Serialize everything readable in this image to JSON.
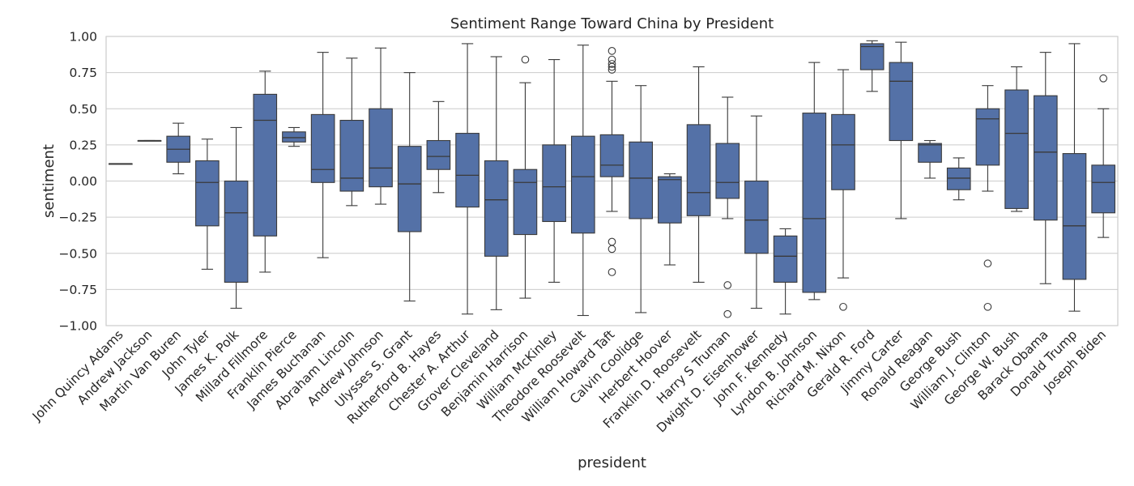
{
  "chart_data": {
    "type": "box",
    "title": "Sentiment Range Toward China by President",
    "xlabel": "president",
    "ylabel": "sentiment",
    "ylim": [
      -1.0,
      1.0
    ],
    "yticks": [
      1.0,
      0.75,
      0.5,
      0.25,
      0.0,
      -0.25,
      -0.5,
      -0.75,
      -1.0
    ],
    "ytick_labels": [
      "1.00",
      "0.75",
      "0.50",
      "0.25",
      "0.00",
      "−0.25",
      "−0.50",
      "−0.75",
      "−1.00"
    ],
    "grid": true,
    "box_color": "#5471a7",
    "categories": [
      "John Quincy Adams",
      "Andrew Jackson",
      "Martin Van Buren",
      "John Tyler",
      "James K. Polk",
      "Millard Fillmore",
      "Franklin Pierce",
      "James Buchanan",
      "Abraham Lincoln",
      "Andrew Johnson",
      "Ulysses S. Grant",
      "Rutherford B. Hayes",
      "Chester A. Arthur",
      "Grover Cleveland",
      "Benjamin Harrison",
      "William McKinley",
      "Theodore Roosevelt",
      "William Howard Taft",
      "Calvin Coolidge",
      "Herbert Hoover",
      "Franklin D. Roosevelt",
      "Harry S Truman",
      "Dwight D. Eisenhower",
      "John F. Kennedy",
      "Lyndon B. Johnson",
      "Richard M. Nixon",
      "Gerald R. Ford",
      "Jimmy Carter",
      "Ronald Reagan",
      "George Bush",
      "William J. Clinton",
      "George W. Bush",
      "Barack Obama",
      "Donald Trump",
      "Joseph Biden"
    ],
    "boxes": [
      {
        "whislo": 0.12,
        "q1": 0.12,
        "med": 0.12,
        "q3": 0.12,
        "whishi": 0.12,
        "fliers": []
      },
      {
        "whislo": 0.28,
        "q1": 0.28,
        "med": 0.28,
        "q3": 0.28,
        "whishi": 0.28,
        "fliers": []
      },
      {
        "whislo": 0.05,
        "q1": 0.13,
        "med": 0.22,
        "q3": 0.31,
        "whishi": 0.4,
        "fliers": []
      },
      {
        "whislo": -0.61,
        "q1": -0.31,
        "med": -0.01,
        "q3": 0.14,
        "whishi": 0.29,
        "fliers": []
      },
      {
        "whislo": -0.88,
        "q1": -0.7,
        "med": -0.22,
        "q3": 0.0,
        "whishi": 0.37,
        "fliers": []
      },
      {
        "whislo": -0.63,
        "q1": -0.38,
        "med": 0.42,
        "q3": 0.6,
        "whishi": 0.76,
        "fliers": []
      },
      {
        "whislo": 0.24,
        "q1": 0.27,
        "med": 0.3,
        "q3": 0.34,
        "whishi": 0.37,
        "fliers": []
      },
      {
        "whislo": -0.53,
        "q1": -0.01,
        "med": 0.08,
        "q3": 0.46,
        "whishi": 0.89,
        "fliers": []
      },
      {
        "whislo": -0.17,
        "q1": -0.07,
        "med": 0.02,
        "q3": 0.42,
        "whishi": 0.85,
        "fliers": []
      },
      {
        "whislo": -0.16,
        "q1": -0.04,
        "med": 0.09,
        "q3": 0.5,
        "whishi": 0.92,
        "fliers": []
      },
      {
        "whislo": -0.83,
        "q1": -0.35,
        "med": -0.02,
        "q3": 0.24,
        "whishi": 0.75,
        "fliers": []
      },
      {
        "whislo": -0.08,
        "q1": 0.08,
        "med": 0.17,
        "q3": 0.28,
        "whishi": 0.55,
        "fliers": []
      },
      {
        "whislo": -0.92,
        "q1": -0.18,
        "med": 0.04,
        "q3": 0.33,
        "whishi": 0.95,
        "fliers": []
      },
      {
        "whislo": -0.89,
        "q1": -0.52,
        "med": -0.13,
        "q3": 0.14,
        "whishi": 0.86,
        "fliers": []
      },
      {
        "whislo": -0.81,
        "q1": -0.37,
        "med": -0.01,
        "q3": 0.08,
        "whishi": 0.68,
        "fliers": [
          0.84
        ]
      },
      {
        "whislo": -0.7,
        "q1": -0.28,
        "med": -0.04,
        "q3": 0.25,
        "whishi": 0.84,
        "fliers": []
      },
      {
        "whislo": -0.93,
        "q1": -0.36,
        "med": 0.03,
        "q3": 0.31,
        "whishi": 0.94,
        "fliers": []
      },
      {
        "whislo": -0.21,
        "q1": 0.03,
        "med": 0.11,
        "q3": 0.32,
        "whishi": 0.69,
        "fliers": [
          0.9,
          0.84,
          0.81,
          0.79,
          0.77,
          -0.42,
          -0.47,
          -0.63
        ]
      },
      {
        "whislo": -0.91,
        "q1": -0.26,
        "med": 0.02,
        "q3": 0.27,
        "whishi": 0.66,
        "fliers": []
      },
      {
        "whislo": -0.58,
        "q1": -0.29,
        "med": 0.01,
        "q3": 0.03,
        "whishi": 0.05,
        "fliers": []
      },
      {
        "whislo": -0.7,
        "q1": -0.24,
        "med": -0.08,
        "q3": 0.39,
        "whishi": 0.79,
        "fliers": []
      },
      {
        "whislo": -0.26,
        "q1": -0.12,
        "med": -0.01,
        "q3": 0.26,
        "whishi": 0.58,
        "fliers": [
          -0.72,
          -0.92
        ]
      },
      {
        "whislo": -0.88,
        "q1": -0.5,
        "med": -0.27,
        "q3": 0.0,
        "whishi": 0.45,
        "fliers": []
      },
      {
        "whislo": -0.92,
        "q1": -0.7,
        "med": -0.52,
        "q3": -0.38,
        "whishi": -0.33,
        "fliers": []
      },
      {
        "whislo": -0.82,
        "q1": -0.77,
        "med": -0.26,
        "q3": 0.47,
        "whishi": 0.82,
        "fliers": []
      },
      {
        "whislo": -0.67,
        "q1": -0.06,
        "med": 0.25,
        "q3": 0.46,
        "whishi": 0.77,
        "fliers": [
          -0.87
        ]
      },
      {
        "whislo": 0.62,
        "q1": 0.77,
        "med": 0.93,
        "q3": 0.95,
        "whishi": 0.97,
        "fliers": []
      },
      {
        "whislo": -0.26,
        "q1": 0.28,
        "med": 0.69,
        "q3": 0.82,
        "whishi": 0.96,
        "fliers": []
      },
      {
        "whislo": 0.02,
        "q1": 0.13,
        "med": 0.25,
        "q3": 0.26,
        "whishi": 0.28,
        "fliers": []
      },
      {
        "whislo": -0.13,
        "q1": -0.06,
        "med": 0.02,
        "q3": 0.09,
        "whishi": 0.16,
        "fliers": []
      },
      {
        "whislo": -0.07,
        "q1": 0.11,
        "med": 0.43,
        "q3": 0.5,
        "whishi": 0.66,
        "fliers": [
          -0.57,
          -0.87
        ]
      },
      {
        "whislo": -0.21,
        "q1": -0.19,
        "med": 0.33,
        "q3": 0.63,
        "whishi": 0.79,
        "fliers": []
      },
      {
        "whislo": -0.71,
        "q1": -0.27,
        "med": 0.2,
        "q3": 0.59,
        "whishi": 0.89,
        "fliers": []
      },
      {
        "whislo": -0.9,
        "q1": -0.68,
        "med": -0.31,
        "q3": 0.19,
        "whishi": 0.95,
        "fliers": []
      },
      {
        "whislo": -0.39,
        "q1": -0.22,
        "med": -0.01,
        "q3": 0.11,
        "whishi": 0.5,
        "fliers": [
          0.71
        ]
      }
    ]
  }
}
